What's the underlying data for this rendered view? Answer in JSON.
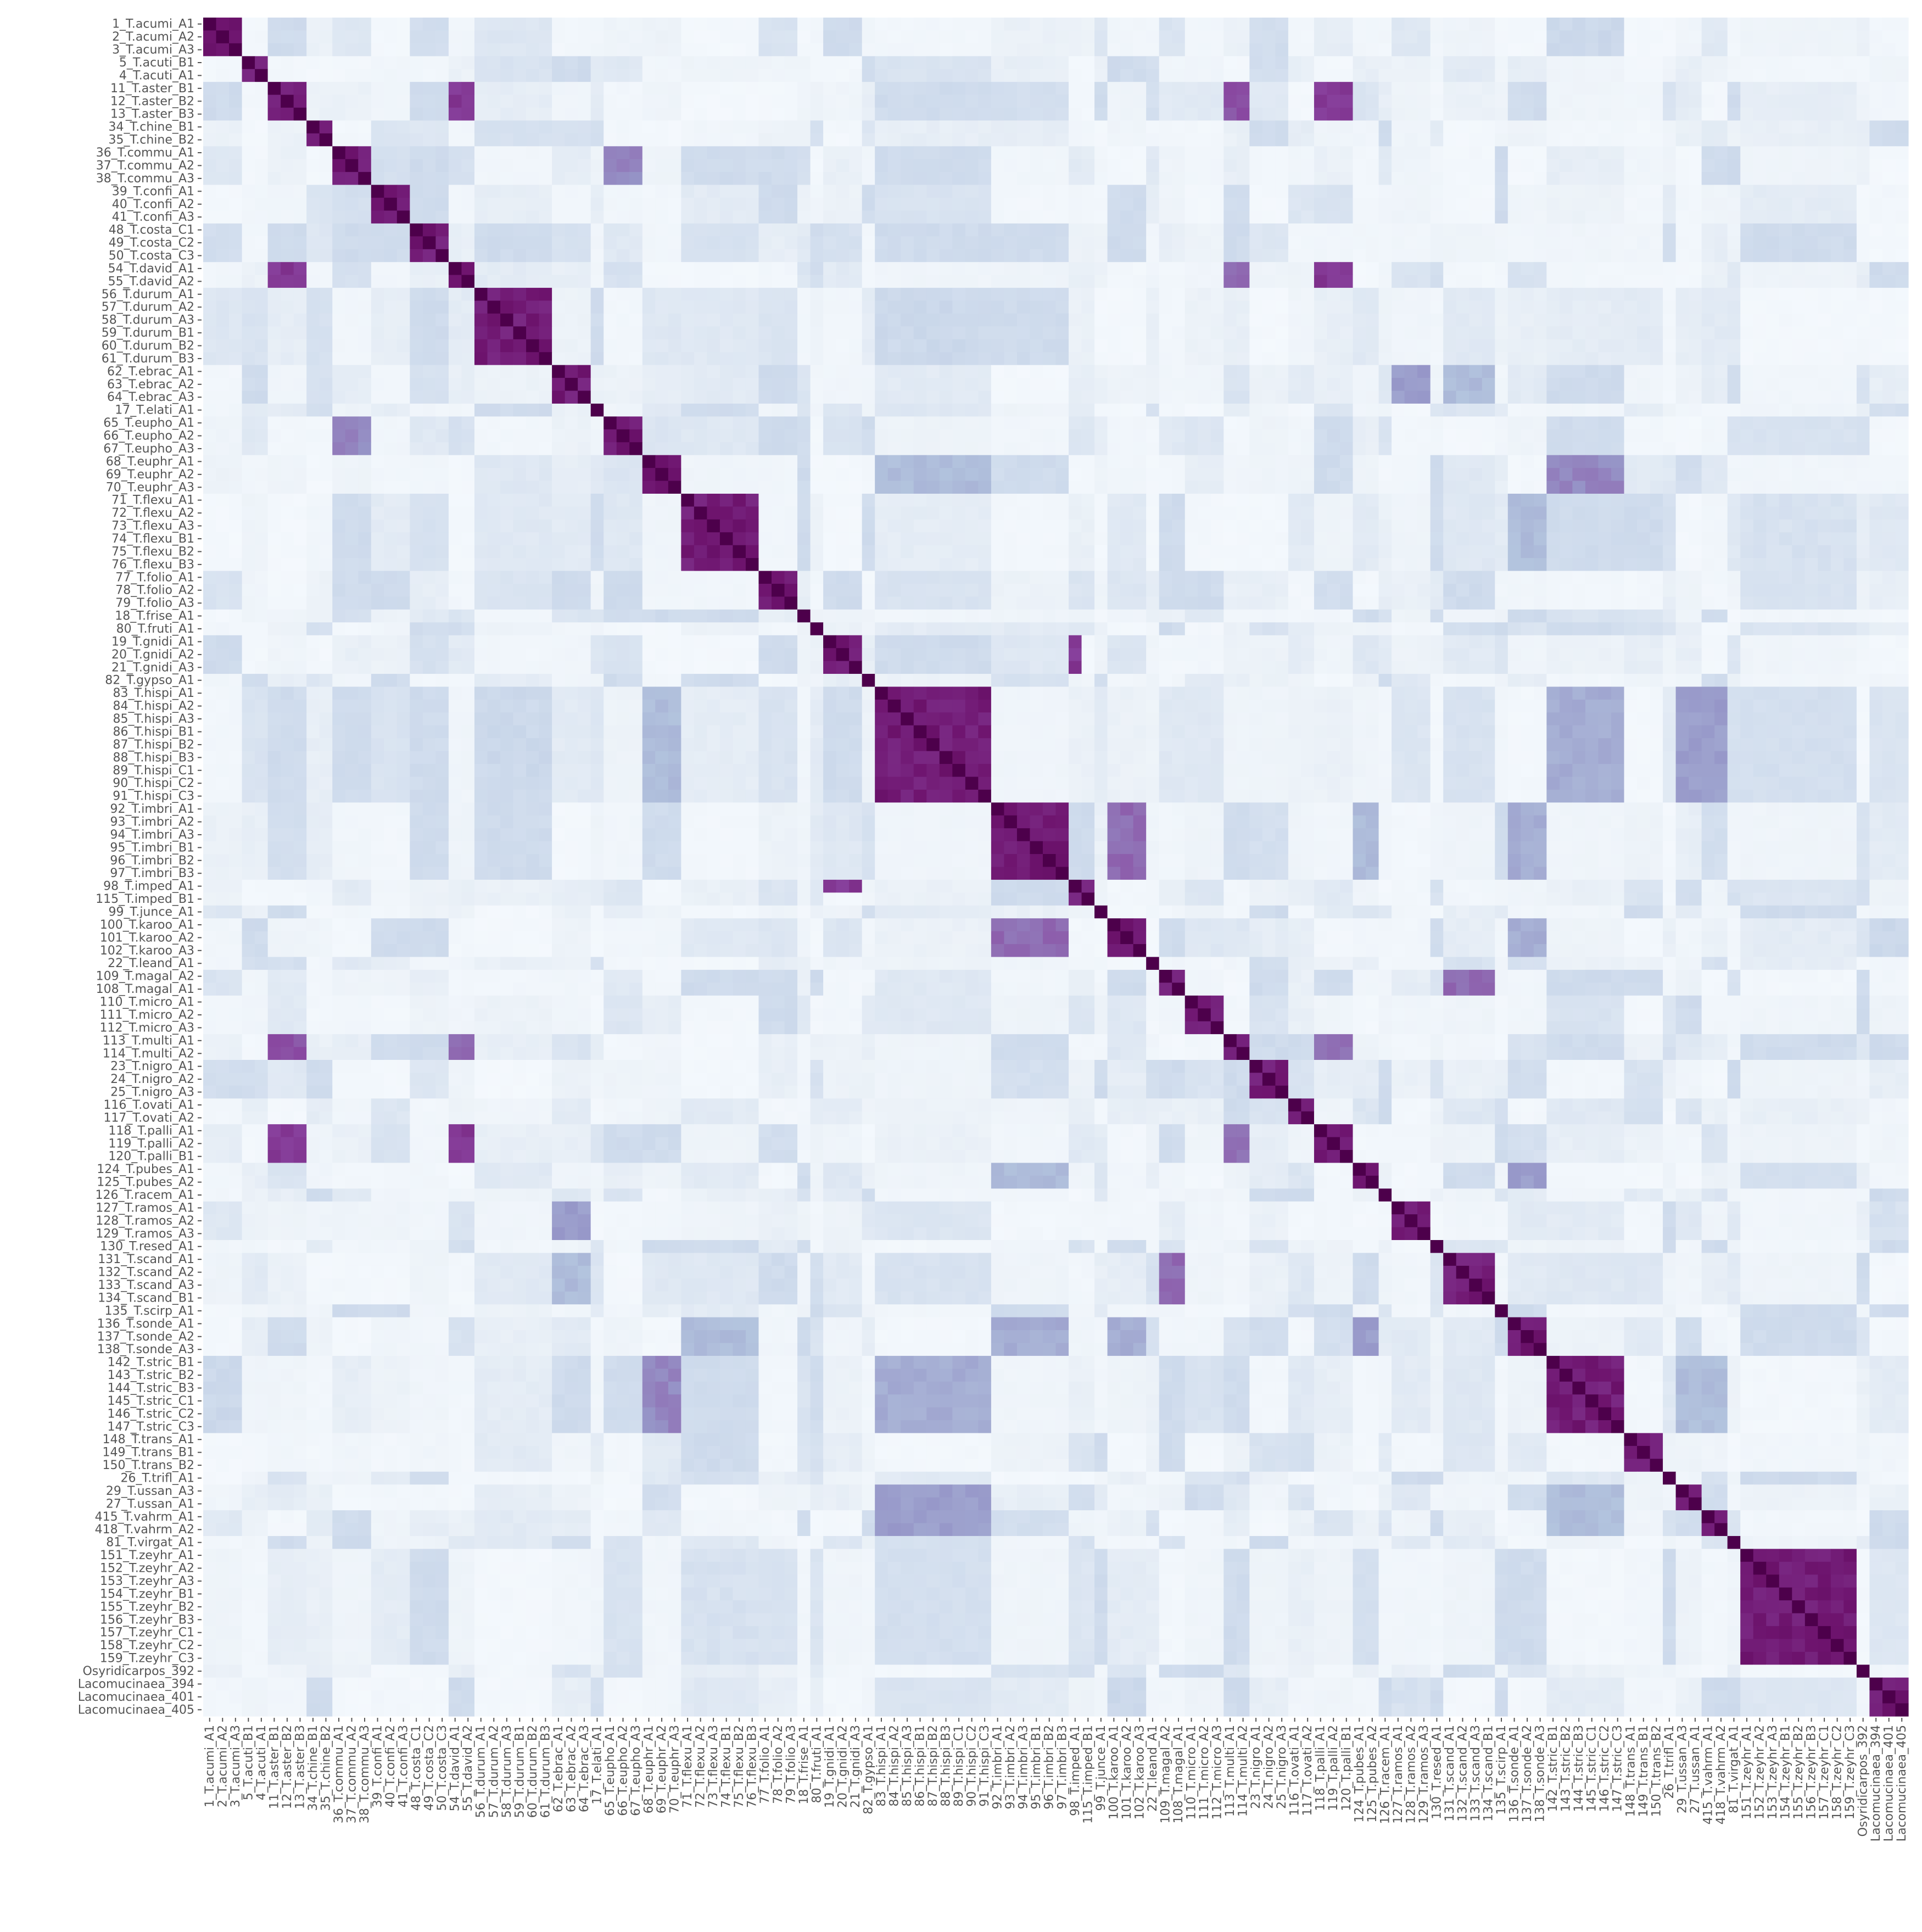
{
  "chart_data": {
    "type": "heatmap",
    "title": "",
    "xlabel": "",
    "ylabel": "",
    "colormap": "BuPu",
    "colors": {
      "low": "#f7fbff",
      "mid": "#b3c4de",
      "high": "#4d004b"
    },
    "value_range": [
      0,
      1
    ],
    "labels": [
      "1_T.acumi_A1",
      "2_T.acumi_A2",
      "3_T.acumi_A3",
      "5_T.acuti_B1",
      "4_T.acuti_A1",
      "11_T.aster_B1",
      "12_T.aster_B2",
      "13_T.aster_B3",
      "34_T.chine_B1",
      "35_T.chine_B2",
      "36_T.commu_A1",
      "37_T.commu_A2",
      "38_T.commu_A3",
      "39_T.confi_A1",
      "40_T.confi_A2",
      "41_T.confi_A3",
      "48_T.costa_C1",
      "49_T.costa_C2",
      "50_T.costa_C3",
      "54_T.david_A1",
      "55_T.david_A2",
      "56_T.durum_A1",
      "57_T.durum_A2",
      "58_T.durum_A3",
      "59_T.durum_B1",
      "60_T.durum_B2",
      "61_T.durum_B3",
      "62_T.ebrac_A1",
      "63_T.ebrac_A2",
      "64_T.ebrac_A3",
      "17_T.elati_A1",
      "65_T.eupho_A1",
      "66_T.eupho_A2",
      "67_T.eupho_A3",
      "68_T.euphr_A1",
      "69_T.euphr_A2",
      "70_T.euphr_A3",
      "71_T.flexu_A1",
      "72_T.flexu_A2",
      "73_T.flexu_A3",
      "74_T.flexu_B1",
      "75_T.flexu_B2",
      "76_T.flexu_B3",
      "77_T.folio_A1",
      "78_T.folio_A2",
      "79_T.folio_A3",
      "18_T.frise_A1",
      "80_T.fruti_A1",
      "19_T.gnidi_A1",
      "20_T.gnidi_A2",
      "21_T.gnidi_A3",
      "82_T.gypso_A1",
      "83_T.hispi_A1",
      "84_T.hispi_A2",
      "85_T.hispi_A3",
      "86_T.hispi_B1",
      "87_T.hispi_B2",
      "88_T.hispi_B3",
      "89_T.hispi_C1",
      "90_T.hispi_C2",
      "91_T.hispi_C3",
      "92_T.imbri_A1",
      "93_T.imbri_A2",
      "94_T.imbri_A3",
      "95_T.imbri_B1",
      "96_T.imbri_B2",
      "97_T.imbri_B3",
      "98_T.imped_A1",
      "115_T.imped_B1",
      "99_T.junce_A1",
      "100_T.karoo_A1",
      "101_T.karoo_A2",
      "102_T.karoo_A3",
      "22_T.leand_A1",
      "109_T.magal_A2",
      "108_T.magal_A1",
      "110_T.micro_A1",
      "111_T.micro_A2",
      "112_T.micro_A3",
      "113_T.multi_A1",
      "114_T.multi_A2",
      "23_T.nigro_A1",
      "24_T.nigro_A2",
      "25_T.nigro_A3",
      "116_T.ovati_A1",
      "117_T.ovati_A2",
      "118_T.palli_A1",
      "119_T.palli_A2",
      "120_T.palli_B1",
      "124_T.pubes_A1",
      "125_T.pubes_A2",
      "126_T.racem_A1",
      "127_T.ramos_A1",
      "128_T.ramos_A2",
      "129_T.ramos_A3",
      "130_T.resed_A1",
      "131_T.scand_A1",
      "132_T.scand_A2",
      "133_T.scand_A3",
      "134_T.scand_B1",
      "135_T.scirp_A1",
      "136_T.sonde_A1",
      "137_T.sonde_A2",
      "138_T.sonde_A3",
      "142_T.stric_B1",
      "143_T.stric_B2",
      "144_T.stric_B3",
      "145_T.stric_C1",
      "146_T.stric_C2",
      "147_T.stric_C3",
      "148_T.trans_A1",
      "149_T.trans_B1",
      "150_T.trans_B2",
      "26_T.trifl_A1",
      "29_T.ussan_A3",
      "27_T.ussan_A1",
      "415_T.vahrm_A1",
      "418_T.vahrm_A2",
      "81_T.virgat_A1",
      "151_T.zeyhr_A1",
      "152_T.zeyhr_A2",
      "153_T.zeyhr_A3",
      "154_T.zeyhr_B1",
      "155_T.zeyhr_B2",
      "156_T.zeyhr_B3",
      "157_T.zeyhr_C1",
      "158_T.zeyhr_C2",
      "159_T.zeyhr_C3",
      "Osyridicarpos_392",
      "Lacomucinaea_394",
      "Lacomucinaea_401",
      "Lacomucinaea_405"
    ],
    "species_blocks": [
      [
        0,
        3
      ],
      [
        3,
        5
      ],
      [
        5,
        8
      ],
      [
        8,
        10
      ],
      [
        10,
        13
      ],
      [
        13,
        16
      ],
      [
        16,
        19
      ],
      [
        19,
        21
      ],
      [
        21,
        27
      ],
      [
        27,
        30
      ],
      [
        30,
        31
      ],
      [
        31,
        34
      ],
      [
        34,
        37
      ],
      [
        37,
        43
      ],
      [
        43,
        46
      ],
      [
        46,
        47
      ],
      [
        47,
        48
      ],
      [
        48,
        51
      ],
      [
        51,
        52
      ],
      [
        52,
        61
      ],
      [
        61,
        67
      ],
      [
        67,
        69
      ],
      [
        69,
        70
      ],
      [
        70,
        73
      ],
      [
        73,
        74
      ],
      [
        74,
        76
      ],
      [
        76,
        79
      ],
      [
        79,
        81
      ],
      [
        81,
        84
      ],
      [
        84,
        86
      ],
      [
        86,
        89
      ],
      [
        89,
        91
      ],
      [
        91,
        92
      ],
      [
        92,
        95
      ],
      [
        95,
        96
      ],
      [
        96,
        100
      ],
      [
        100,
        101
      ],
      [
        101,
        104
      ],
      [
        104,
        110
      ],
      [
        110,
        113
      ],
      [
        113,
        114
      ],
      [
        114,
        116
      ],
      [
        116,
        118
      ],
      [
        118,
        119
      ],
      [
        119,
        128
      ],
      [
        128,
        129
      ],
      [
        129,
        132
      ]
    ],
    "block_self_similarity": 0.9,
    "strong_links": [
      {
        "a": [
          5,
          8
        ],
        "b": [
          19,
          21
        ],
        "value": 0.8
      },
      {
        "a": [
          5,
          8
        ],
        "b": [
          79,
          81
        ],
        "value": 0.75
      },
      {
        "a": [
          5,
          8
        ],
        "b": [
          86,
          89
        ],
        "value": 0.8
      },
      {
        "a": [
          19,
          21
        ],
        "b": [
          86,
          89
        ],
        "value": 0.8
      },
      {
        "a": [
          19,
          21
        ],
        "b": [
          79,
          81
        ],
        "value": 0.7
      },
      {
        "a": [
          79,
          81
        ],
        "b": [
          86,
          89
        ],
        "value": 0.7
      },
      {
        "a": [
          10,
          13
        ],
        "b": [
          31,
          34
        ],
        "value": 0.65
      },
      {
        "a": [
          34,
          37
        ],
        "b": [
          104,
          110
        ],
        "value": 0.65
      },
      {
        "a": [
          34,
          37
        ],
        "b": [
          52,
          61
        ],
        "value": 0.5
      },
      {
        "a": [
          52,
          61
        ],
        "b": [
          104,
          110
        ],
        "value": 0.55
      },
      {
        "a": [
          52,
          61
        ],
        "b": [
          114,
          118
        ],
        "value": 0.6
      },
      {
        "a": [
          104,
          110
        ],
        "b": [
          114,
          118
        ],
        "value": 0.5
      },
      {
        "a": [
          61,
          67
        ],
        "b": [
          70,
          73
        ],
        "value": 0.7
      },
      {
        "a": [
          61,
          67
        ],
        "b": [
          101,
          104
        ],
        "value": 0.55
      },
      {
        "a": [
          61,
          67
        ],
        "b": [
          89,
          91
        ],
        "value": 0.5
      },
      {
        "a": [
          70,
          73
        ],
        "b": [
          101,
          104
        ],
        "value": 0.55
      },
      {
        "a": [
          89,
          91
        ],
        "b": [
          101,
          104
        ],
        "value": 0.6
      },
      {
        "a": [
          27,
          30
        ],
        "b": [
          92,
          95
        ],
        "value": 0.6
      },
      {
        "a": [
          27,
          30
        ],
        "b": [
          96,
          100
        ],
        "value": 0.5
      },
      {
        "a": [
          37,
          43
        ],
        "b": [
          101,
          104
        ],
        "value": 0.5
      },
      {
        "a": [
          37,
          43
        ],
        "b": [
          119,
          128
        ],
        "value": 0.3
      },
      {
        "a": [
          74,
          76
        ],
        "b": [
          96,
          100
        ],
        "value": 0.7
      },
      {
        "a": [
          96,
          100
        ],
        "b": [
          74,
          76
        ],
        "value": 0.7
      },
      {
        "a": [
          48,
          51
        ],
        "b": [
          67,
          68
        ],
        "value": 0.8
      },
      {
        "a": [
          21,
          27
        ],
        "b": [
          52,
          61
        ],
        "value": 0.35
      },
      {
        "a": [
          0,
          3
        ],
        "b": [
          104,
          110
        ],
        "value": 0.35
      },
      {
        "a": [
          129,
          132
        ],
        "b": [
          70,
          73
        ],
        "value": 0.35
      },
      {
        "a": [
          129,
          132
        ],
        "b": [
          92,
          95
        ],
        "value": 0.3
      },
      {
        "a": [
          119,
          128
        ],
        "b": [
          89,
          91
        ],
        "value": 0.3
      },
      {
        "a": [
          119,
          128
        ],
        "b": [
          101,
          104
        ],
        "value": 0.3
      }
    ]
  }
}
